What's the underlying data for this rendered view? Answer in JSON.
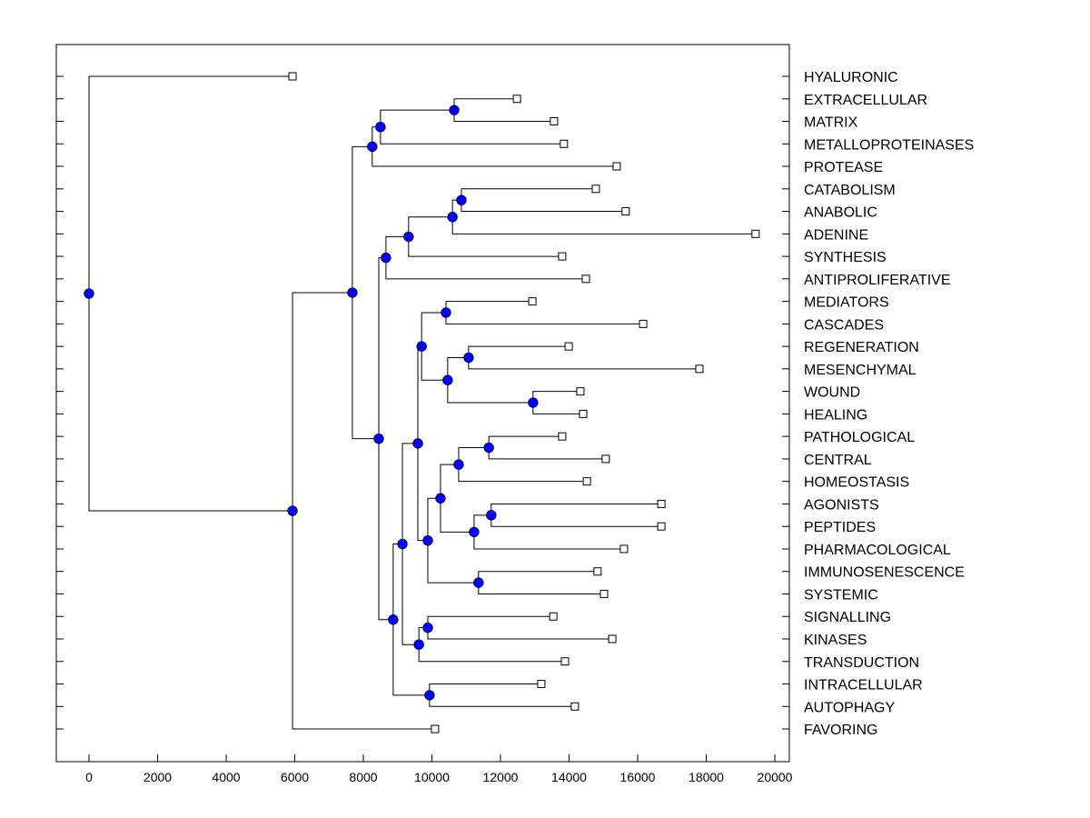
{
  "chart_data": {
    "type": "dendrogram",
    "title": "",
    "xlabel": "",
    "ylabel": "",
    "xlim": [
      -1000,
      20500
    ],
    "xticks": [
      0,
      2000,
      4000,
      6000,
      8000,
      10000,
      12000,
      14000,
      16000,
      18000,
      20000
    ],
    "xtick_labels": [
      "0",
      "2000",
      "4000",
      "6000",
      "8000",
      "10000",
      "12000",
      "14000",
      "16000",
      "18000",
      "20000"
    ],
    "leaf_order": [
      "HYALURONIC",
      "EXTRACELLULAR",
      "MATRIX",
      "METALLOPROTEINASES",
      "PROTEASE",
      "CATABOLISM",
      "ANABOLIC",
      "ADENINE",
      "SYNTHESIS",
      "ANTIPROLIFERATIVE",
      "MEDIATORS",
      "CASCADES",
      "REGENERATION",
      "MESENCHYMAL",
      "WOUND",
      "HEALING",
      "PATHOLOGICAL",
      "CENTRAL",
      "HOMEOSTASIS",
      "AGONISTS",
      "PEPTIDES",
      "PHARMACOLOGICAL",
      "IMMUNOSENESCENCE",
      "SYSTEMIC",
      "SIGNALLING",
      "KINASES",
      "TRANSDUCTION",
      "INTRACELLULAR",
      "AUTOPHAGY",
      "FAVORING"
    ],
    "leaf_values": [
      5935,
      12480,
      13560,
      13850,
      15390,
      14780,
      15650,
      19440,
      13800,
      14490,
      12930,
      16160,
      13990,
      17800,
      14330,
      14410,
      13800,
      15070,
      14520,
      16690,
      16690,
      15600,
      14830,
      15020,
      13540,
      15260,
      13880,
      13190,
      14170,
      10090
    ],
    "tree": {
      "x": 0,
      "c": [
        {
          "leaf": 0
        },
        {
          "x": 5935,
          "c": [
            {
              "x": 7680,
              "c": [
                {
                  "x": 8260,
                  "c": [
                    {
                      "x": 8500,
                      "c": [
                        {
                          "x": 10650,
                          "c": [
                            {
                              "leaf": 1
                            },
                            {
                              "leaf": 2
                            }
                          ]
                        },
                        {
                          "leaf": 3
                        }
                      ]
                    },
                    {
                      "leaf": 4
                    }
                  ]
                },
                {
                  "x": 8450,
                  "c": [
                    {
                      "x": 8660,
                      "c": [
                        {
                          "x": 9320,
                          "c": [
                            {
                              "x": 10600,
                              "c": [
                                {
                                  "x": 10860,
                                  "c": [
                                    {
                                      "leaf": 5
                                    },
                                    {
                                      "leaf": 6
                                    }
                                  ]
                                },
                                {
                                  "leaf": 7
                                }
                              ]
                            },
                            {
                              "leaf": 8
                            }
                          ]
                        },
                        {
                          "leaf": 9
                        }
                      ]
                    },
                    {
                      "x": 8870,
                      "c": [
                        {
                          "x": 9140,
                          "c": [
                            {
                              "x": 9590,
                              "c": [
                                {
                                  "x": 9700,
                                  "c": [
                                    {
                                      "x": 10410,
                                      "c": [
                                        {
                                          "leaf": 10
                                        },
                                        {
                                          "leaf": 11
                                        }
                                      ]
                                    },
                                    {
                                      "x": 10460,
                                      "c": [
                                        {
                                          "x": 11070,
                                          "c": [
                                            {
                                              "leaf": 12
                                            },
                                            {
                                              "leaf": 13
                                            }
                                          ]
                                        },
                                        {
                                          "x": 12950,
                                          "c": [
                                            {
                                              "leaf": 14
                                            },
                                            {
                                              "leaf": 15
                                            }
                                          ]
                                        }
                                      ]
                                    }
                                  ]
                                },
                                {
                                  "x": 9880,
                                  "c": [
                                    {
                                      "x": 10250,
                                      "c": [
                                        {
                                          "x": 10780,
                                          "c": [
                                            {
                                              "x": 11660,
                                              "c": [
                                                {
                                                  "leaf": 16
                                                },
                                                {
                                                  "leaf": 17
                                                }
                                              ]
                                            },
                                            {
                                              "leaf": 18
                                            }
                                          ]
                                        },
                                        {
                                          "x": 11230,
                                          "c": [
                                            {
                                              "x": 11730,
                                              "c": [
                                                {
                                                  "leaf": 19
                                                },
                                                {
                                                  "leaf": 20
                                                }
                                              ]
                                            },
                                            {
                                              "leaf": 21
                                            }
                                          ]
                                        }
                                      ]
                                    },
                                    {
                                      "x": 11360,
                                      "c": [
                                        {
                                          "leaf": 22
                                        },
                                        {
                                          "leaf": 23
                                        }
                                      ]
                                    }
                                  ]
                                }
                              ]
                            },
                            {
                              "x": 9620,
                              "c": [
                                {
                                  "x": 9880,
                                  "c": [
                                    {
                                      "leaf": 24
                                    },
                                    {
                                      "leaf": 25
                                    }
                                  ]
                                },
                                {
                                  "leaf": 26
                                }
                              ]
                            }
                          ]
                        },
                        {
                          "x": 9930,
                          "c": [
                            {
                              "leaf": 27
                            },
                            {
                              "leaf": 28
                            }
                          ]
                        }
                      ]
                    }
                  ]
                }
              ]
            },
            {
              "leaf": 29
            }
          ]
        }
      ]
    },
    "node_color": "#0000ff",
    "leaf_marker": "open-square",
    "grid": false,
    "legend": "none"
  }
}
